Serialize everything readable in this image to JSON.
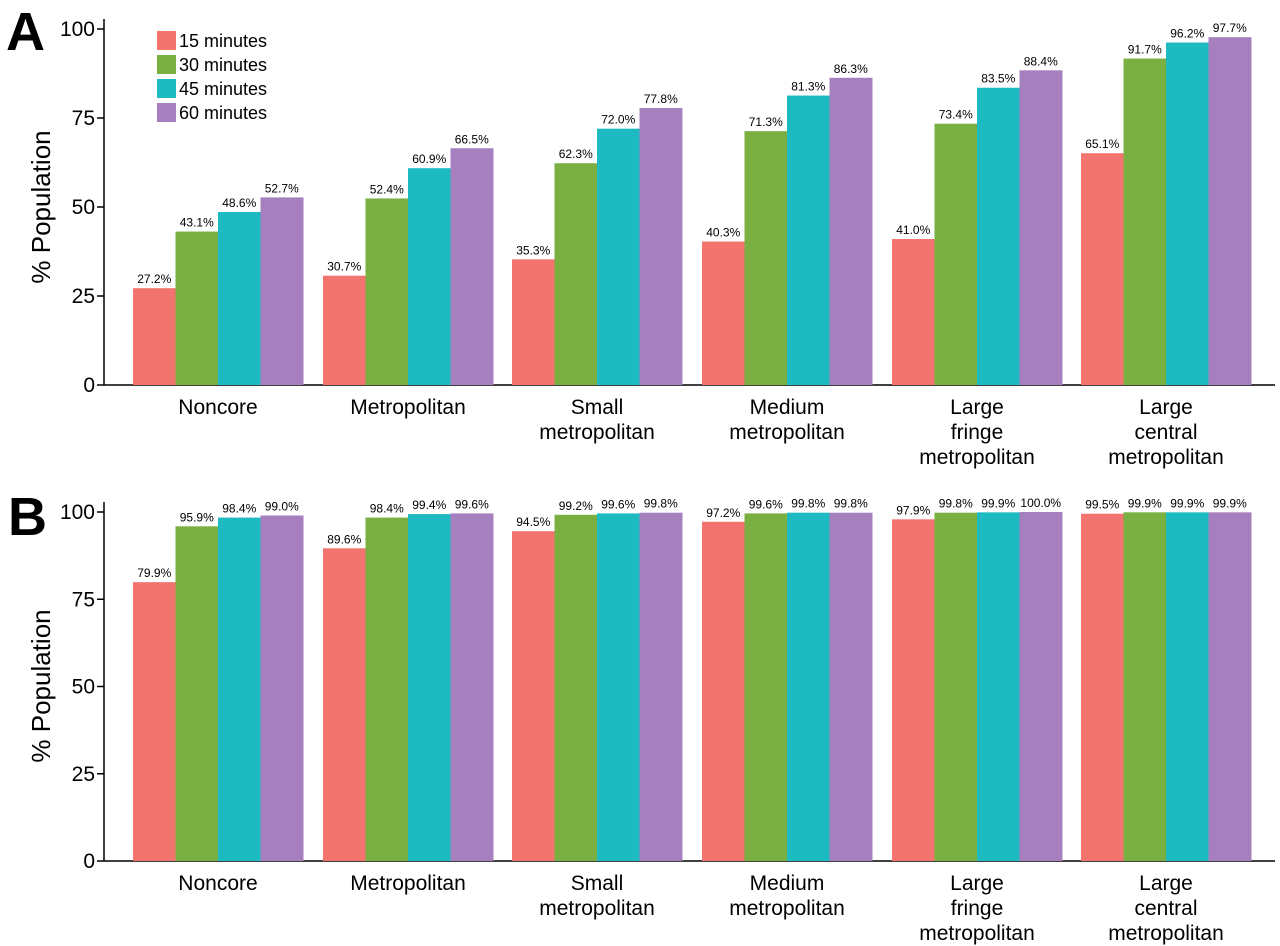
{
  "chart_data": [
    {
      "panel": "A",
      "type": "bar",
      "ylabel": "% Population",
      "ylim": [
        0,
        100
      ],
      "yticks": [
        "0",
        "25",
        "50",
        "75",
        "100"
      ],
      "categories": [
        [
          "Noncore"
        ],
        [
          "Metropolitan"
        ],
        [
          "Small",
          "metropolitan"
        ],
        [
          "Medium",
          "metropolitan"
        ],
        [
          "Large",
          "fringe",
          "metropolitan"
        ],
        [
          "Large",
          "central",
          "metropolitan"
        ]
      ],
      "series": [
        {
          "name": "15 minutes",
          "color": "#F3736F",
          "values": [
            27.2,
            30.7,
            35.3,
            40.3,
            41.0,
            65.1
          ],
          "labels": [
            "27.2%",
            "30.7%",
            "35.3%",
            "40.3%",
            "41.0%",
            "65.1%"
          ]
        },
        {
          "name": "30 minutes",
          "color": "#7AAF41",
          "values": [
            43.1,
            52.4,
            62.3,
            71.3,
            73.4,
            91.7
          ],
          "labels": [
            "43.1%",
            "52.4%",
            "62.3%",
            "71.3%",
            "73.4%",
            "91.7%"
          ]
        },
        {
          "name": "45 minutes",
          "color": "#1EBAC2",
          "values": [
            48.6,
            60.9,
            72.0,
            81.3,
            83.5,
            96.2
          ],
          "labels": [
            "48.6%",
            "60.9%",
            "72.0%",
            "81.3%",
            "83.5%",
            "96.2%"
          ]
        },
        {
          "name": "60 minutes",
          "color": "#A680BE",
          "values": [
            52.7,
            66.5,
            77.8,
            86.3,
            88.4,
            97.7
          ],
          "labels": [
            "52.7%",
            "66.5%",
            "77.8%",
            "86.3%",
            "88.4%",
            "97.7%"
          ]
        }
      ],
      "legend": "top-left"
    },
    {
      "panel": "B",
      "type": "bar",
      "ylabel": "% Population",
      "ylim": [
        0,
        100
      ],
      "yticks": [
        "0",
        "25",
        "50",
        "75",
        "100"
      ],
      "categories": [
        [
          "Noncore"
        ],
        [
          "Metropolitan"
        ],
        [
          "Small",
          "metropolitan"
        ],
        [
          "Medium",
          "metropolitan"
        ],
        [
          "Large",
          "fringe",
          "metropolitan"
        ],
        [
          "Large",
          "central",
          "metropolitan"
        ]
      ],
      "series": [
        {
          "name": "15 minutes",
          "color": "#F3736F",
          "values": [
            79.9,
            89.6,
            94.5,
            97.2,
            97.9,
            99.5
          ],
          "labels": [
            "79.9%",
            "89.6%",
            "94.5%",
            "97.2%",
            "97.9%",
            "99.5%"
          ]
        },
        {
          "name": "30 minutes",
          "color": "#7AAF41",
          "values": [
            95.9,
            98.4,
            99.2,
            99.6,
            99.8,
            99.9
          ],
          "labels": [
            "95.9%",
            "98.4%",
            "99.2%",
            "99.6%",
            "99.8%",
            "99.9%"
          ]
        },
        {
          "name": "45 minutes",
          "color": "#1EBAC2",
          "values": [
            98.4,
            99.4,
            99.6,
            99.8,
            99.9,
            99.9
          ],
          "labels": [
            "98.4%",
            "99.4%",
            "99.6%",
            "99.8%",
            "99.9%",
            "99.9%"
          ]
        },
        {
          "name": "60 minutes",
          "color": "#A680BE",
          "values": [
            99.0,
            99.6,
            99.8,
            99.8,
            100.0,
            99.9
          ],
          "labels": [
            "99.0%",
            "99.6%",
            "99.8%",
            "99.8%",
            "100.0%",
            "99.9%"
          ]
        }
      ],
      "legend": "none"
    }
  ]
}
